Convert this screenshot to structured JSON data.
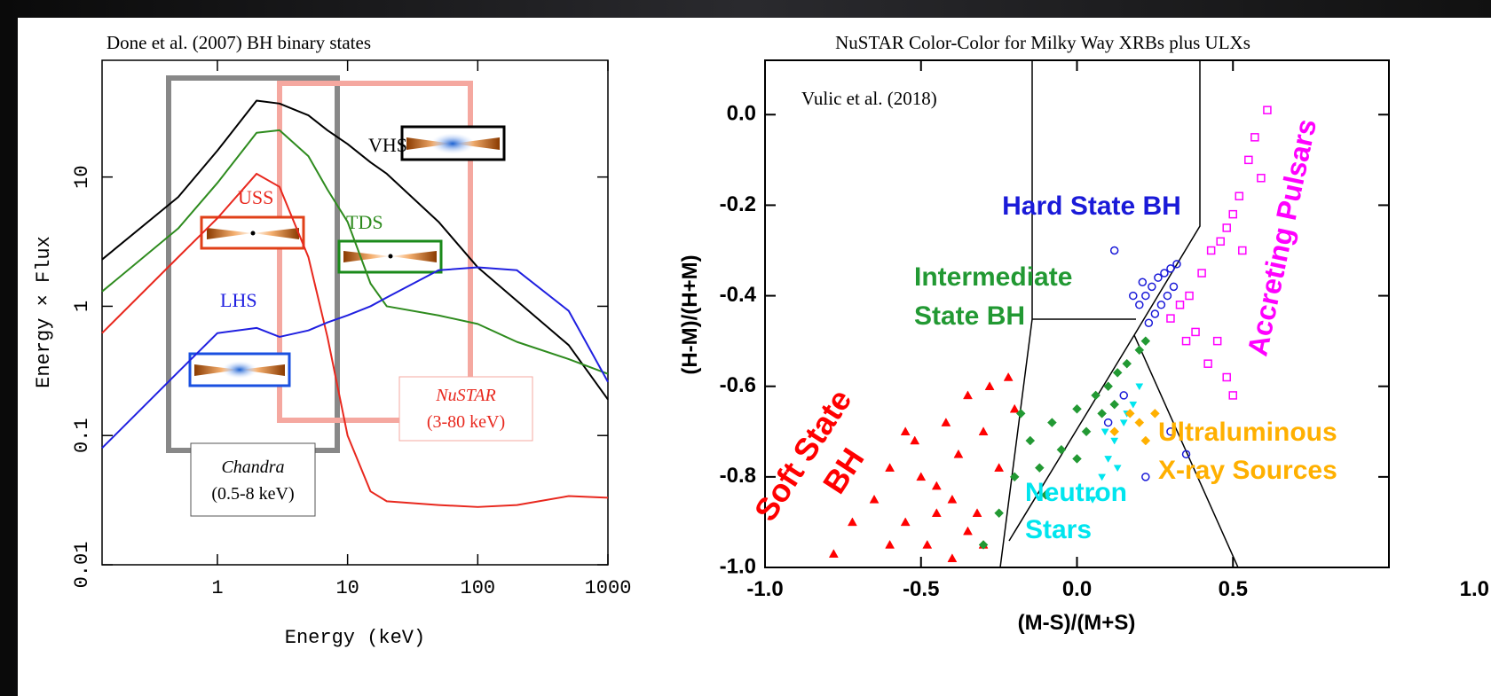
{
  "chart_data": [
    {
      "type": "line",
      "title": "Done et al. (2007) BH binary states",
      "xlabel": "Energy (keV)",
      "ylabel": "Energy × Flux",
      "log_x": true,
      "log_y": true,
      "xlim": [
        0.13,
        1000
      ],
      "ylim": [
        0.01,
        80
      ],
      "xticks": [
        1,
        10,
        100,
        1000
      ],
      "yticks": [
        0.01,
        0.1,
        1,
        10
      ],
      "x": [
        0.13,
        0.5,
        1,
        2,
        3,
        5,
        7,
        10,
        15,
        20,
        50,
        100,
        200,
        500,
        1000
      ],
      "series": [
        {
          "name": "VHS",
          "color": "#000000",
          "values": [
            2.3,
            7,
            16,
            39,
            37,
            30,
            23,
            18,
            13,
            10.6,
            4.5,
            2.0,
            1.1,
            0.5,
            0.19
          ]
        },
        {
          "name": "TDS",
          "color": "#2e8b1e",
          "values": [
            1.3,
            4,
            9,
            22,
            23,
            14.5,
            8,
            4.5,
            1.5,
            1.0,
            0.85,
            0.73,
            0.53,
            0.39,
            0.3
          ]
        },
        {
          "name": "USS",
          "color": "#e8281e",
          "values": [
            0.62,
            2.4,
            4.8,
            10.6,
            8.4,
            2.4,
            0.58,
            0.1,
            0.037,
            0.031,
            0.029,
            0.028,
            0.029,
            0.034,
            0.033
          ]
        },
        {
          "name": "LHS",
          "color": "#2020e0",
          "values": [
            0.08,
            0.31,
            0.62,
            0.68,
            0.58,
            0.65,
            0.75,
            0.85,
            1.0,
            1.17,
            1.9,
            2.0,
            1.9,
            0.92,
            0.26
          ]
        }
      ],
      "annotations": [
        "Chandra",
        "(0.5-8 keV)",
        "NuSTAR",
        "(3-80 keV)"
      ]
    },
    {
      "type": "scatter",
      "title": "NuSTAR Color-Color for Milky Way XRBs plus ULXs",
      "xlabel": "(M-S)/(M+S)",
      "ylabel": "(H-M)/(H+M)",
      "xlim": [
        -1,
        1
      ],
      "ylim": [
        -1,
        0.12
      ],
      "xticks": [
        {
          "value": -1,
          "label": "-1.0"
        },
        -0.5,
        {
          "value": 0,
          "label": "0.0"
        },
        0.5,
        {
          "value": 1,
          "label": "1.0"
        }
      ],
      "yticks": [
        {
          "value": -1,
          "label": "-1.0"
        },
        -0.8,
        -0.6,
        -0.4,
        -0.2,
        {
          "value": 0,
          "label": "0.0"
        }
      ],
      "annotations": [
        "Vulic et al. (2018)"
      ],
      "series": [
        {
          "name": [
            "Soft State",
            "BH"
          ],
          "color": "#ff0000",
          "marker": "triangle",
          "x": [
            -0.78,
            -0.72,
            -0.65,
            -0.6,
            -0.55,
            -0.52,
            -0.48,
            -0.45,
            -0.42,
            -0.4,
            -0.38,
            -0.35,
            -0.32,
            -0.3,
            -0.28,
            -0.25,
            -0.22,
            -0.2,
            -0.5,
            -0.6,
            -0.45,
            -0.35,
            -0.3,
            -0.55,
            -0.4
          ],
          "values": [
            -0.97,
            -0.9,
            -0.85,
            -0.78,
            -0.9,
            -0.72,
            -0.95,
            -0.82,
            -0.68,
            -0.98,
            -0.75,
            -0.62,
            -0.88,
            -0.7,
            -0.6,
            -0.78,
            -0.58,
            -0.65,
            -0.8,
            -0.95,
            -0.88,
            -0.92,
            -0.95,
            -0.7,
            -0.85
          ]
        },
        {
          "name": [
            "Intermediate",
            "State BH"
          ],
          "color": "#229933",
          "marker": "diamond",
          "x": [
            -0.3,
            -0.25,
            -0.2,
            -0.15,
            -0.12,
            -0.08,
            -0.05,
            0,
            0.03,
            0.06,
            0.1,
            0.13,
            0.16,
            0.2,
            0.22,
            -0.1,
            0,
            0.08,
            -0.18,
            0.12
          ],
          "values": [
            -0.95,
            -0.88,
            -0.8,
            -0.72,
            -0.78,
            -0.68,
            -0.74,
            -0.65,
            -0.7,
            -0.62,
            -0.6,
            -0.57,
            -0.55,
            -0.52,
            -0.5,
            -0.84,
            -0.76,
            -0.66,
            -0.66,
            -0.64
          ]
        },
        {
          "name": [
            "Hard State BH"
          ],
          "color": "#1a1ad8",
          "marker": "circle",
          "x": [
            0.2,
            0.22,
            0.24,
            0.26,
            0.28,
            0.3,
            0.32,
            0.25,
            0.27,
            0.29,
            0.23,
            0.21,
            0.31,
            0.18,
            0.12,
            0.15,
            0.35,
            0.3,
            0.1,
            0.22
          ],
          "values": [
            -0.42,
            -0.4,
            -0.38,
            -0.36,
            -0.35,
            -0.34,
            -0.33,
            -0.44,
            -0.42,
            -0.4,
            -0.46,
            -0.37,
            -0.38,
            -0.4,
            -0.3,
            -0.62,
            -0.75,
            -0.7,
            -0.68,
            -0.8
          ]
        },
        {
          "name": [
            "Accreting Pulsars"
          ],
          "color": "#ff00ff",
          "marker": "square",
          "x": [
            0.3,
            0.33,
            0.36,
            0.4,
            0.43,
            0.46,
            0.48,
            0.5,
            0.52,
            0.55,
            0.57,
            0.45,
            0.42,
            0.38,
            0.35,
            0.48,
            0.5,
            0.53,
            0.59,
            0.61
          ],
          "values": [
            -0.45,
            -0.42,
            -0.4,
            -0.35,
            -0.3,
            -0.28,
            -0.25,
            -0.22,
            -0.18,
            -0.1,
            -0.05,
            -0.5,
            -0.55,
            -0.48,
            -0.5,
            -0.58,
            -0.62,
            -0.3,
            -0.14,
            0.01
          ]
        },
        {
          "name": [
            "Neutron",
            "Stars"
          ],
          "color": "#00e5ee",
          "marker": "down",
          "x": [
            0.05,
            0.08,
            0.1,
            0.12,
            0.15,
            0.18,
            0.2,
            0.13,
            0.09,
            0.16
          ],
          "values": [
            -0.85,
            -0.8,
            -0.76,
            -0.72,
            -0.68,
            -0.64,
            -0.6,
            -0.78,
            -0.7,
            -0.66
          ]
        },
        {
          "name": [
            "Ultraluminous",
            "X-ray Sources"
          ],
          "color": "#ffb000",
          "marker": "diamond",
          "x": [
            0.12,
            0.17,
            0.2,
            0.25,
            0.22
          ],
          "values": [
            -0.7,
            -0.66,
            -0.68,
            -0.66,
            -0.72
          ]
        }
      ]
    }
  ]
}
